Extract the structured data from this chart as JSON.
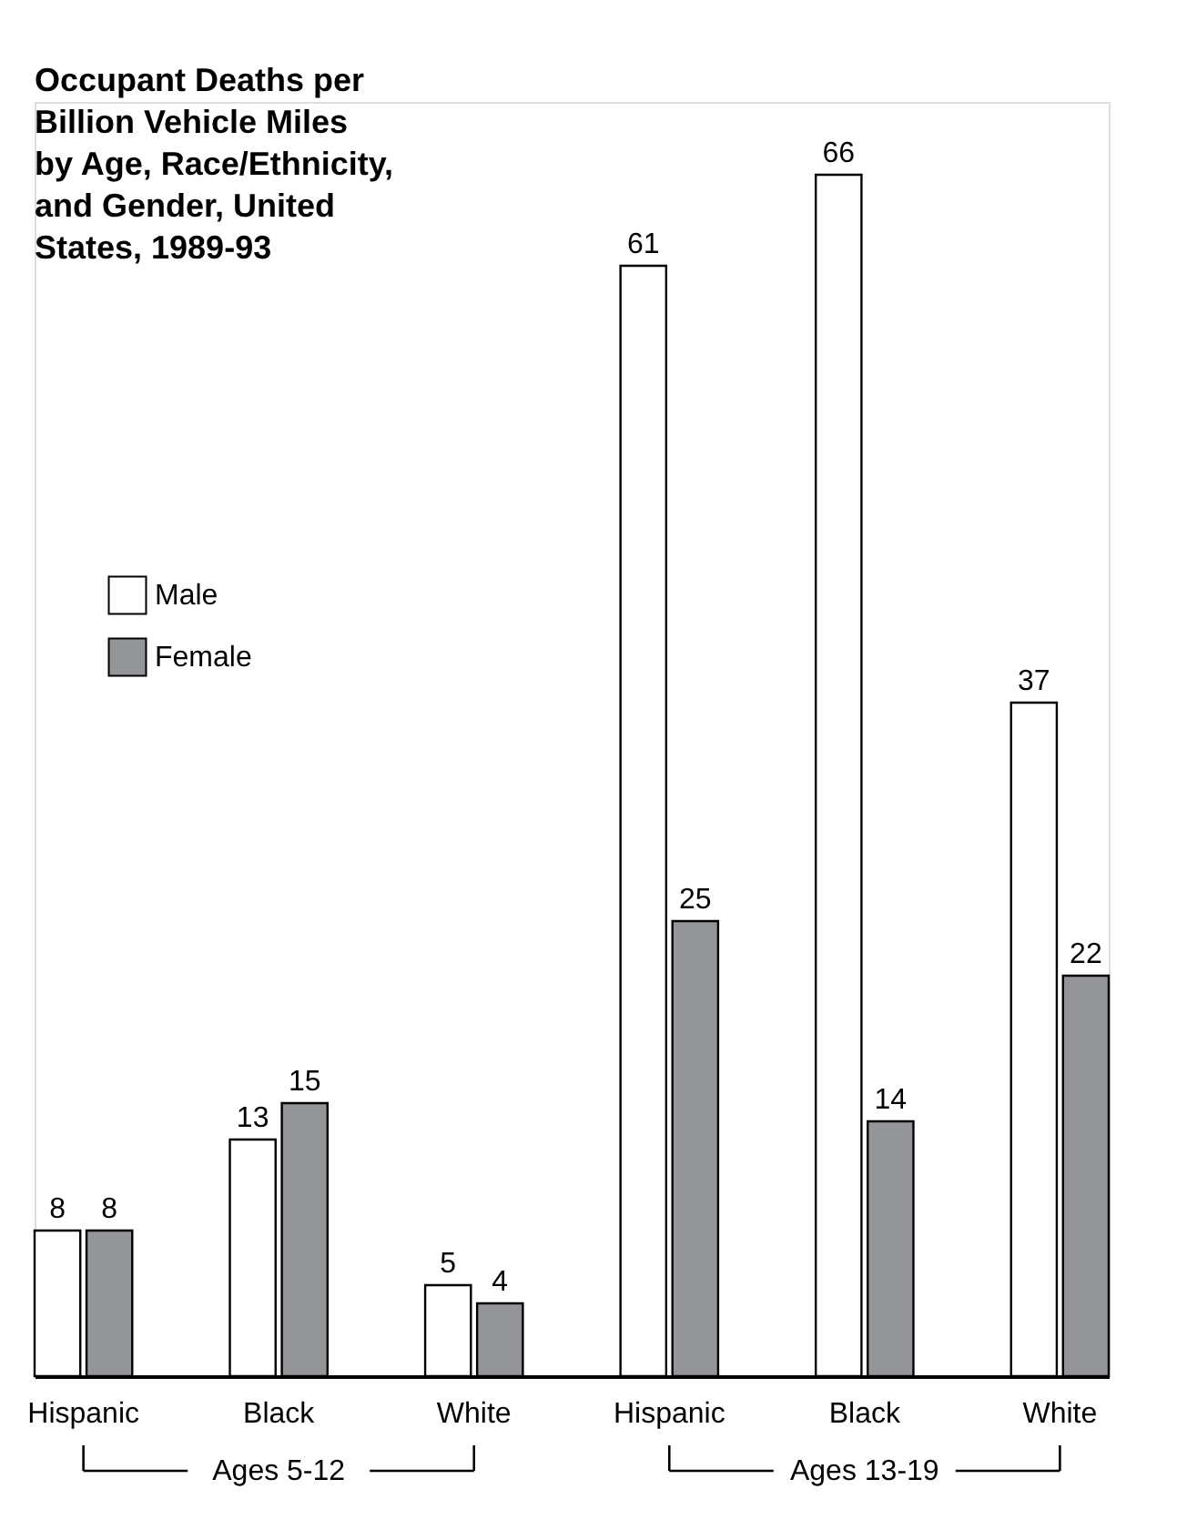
{
  "chart_data": {
    "type": "bar",
    "title": "Occupant Deaths per Billion Vehicle Miles by Age, Race/Ethnicity, and Gender, United States, 1989-93",
    "categories": [
      "Hispanic",
      "Black",
      "White",
      "Hispanic",
      "Black",
      "White"
    ],
    "series": [
      {
        "name": "Male",
        "color": "#ffffff",
        "values": [
          8,
          13,
          5,
          61,
          66,
          37
        ]
      },
      {
        "name": "Female",
        "color": "#939598",
        "values": [
          8,
          15,
          4,
          25,
          14,
          22
        ]
      }
    ],
    "data_labels": true,
    "legend": "top left",
    "annotations": [
      "Ages 5-12",
      "Ages 13-19"
    ]
  }
}
